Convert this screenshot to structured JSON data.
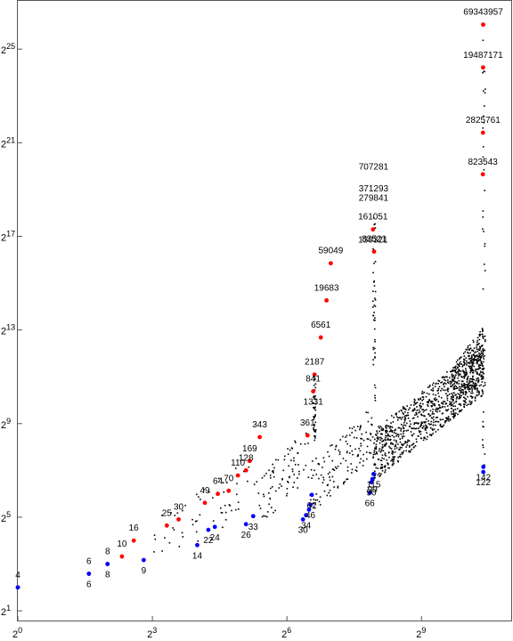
{
  "chart_data": {
    "type": "scatter",
    "title": "",
    "xlabel": "",
    "ylabel": "",
    "x_scale": "log2",
    "y_scale": "log2",
    "xlim": [
      1,
      2048
    ],
    "ylim": [
      1.5,
      140000000
    ],
    "x_ticks": [
      {
        "base": "2",
        "exp": "0",
        "value": 1
      },
      {
        "base": "2",
        "exp": "3",
        "value": 8
      },
      {
        "base": "2",
        "exp": "6",
        "value": 64
      },
      {
        "base": "2",
        "exp": "9",
        "value": 512
      }
    ],
    "y_ticks": [
      {
        "base": "2",
        "exp": "1",
        "value": 2
      },
      {
        "base": "2",
        "exp": "5",
        "value": 32
      },
      {
        "base": "2",
        "exp": "9",
        "value": 512
      },
      {
        "base": "2",
        "exp": "13",
        "value": 8192
      },
      {
        "base": "2",
        "exp": "17",
        "value": 131072
      },
      {
        "base": "2",
        "exp": "21",
        "value": 2097152
      },
      {
        "base": "2",
        "exp": "25",
        "value": 33554432
      }
    ],
    "colors": {
      "upper": "#ff0000",
      "lower": "#0000ff",
      "other": "#000000"
    },
    "series": [
      {
        "color": "upper",
        "points": [
          {
            "x": 1,
            "y": 4
          },
          {
            "x": 3,
            "y": 6
          },
          {
            "x": 4,
            "y": 8
          },
          {
            "x": 5,
            "y": 10
          },
          {
            "x": 6,
            "y": 16
          },
          {
            "x": 10,
            "y": 25
          },
          {
            "x": 12,
            "y": 30
          },
          {
            "x": 18,
            "y": 49
          },
          {
            "x": 22,
            "y": 64
          },
          {
            "x": 26,
            "y": 70
          },
          {
            "x": 30,
            "y": 110
          },
          {
            "x": 34,
            "y": 128
          },
          {
            "x": 36,
            "y": 169
          },
          {
            "x": 42,
            "y": 343
          },
          {
            "x": 88,
            "y": 361
          },
          {
            "x": 96,
            "y": 1331
          },
          {
            "x": 98,
            "y": 2187
          },
          {
            "x": 108,
            "y": 6561
          },
          {
            "x": 118,
            "y": 19683
          },
          {
            "x": 126,
            "y": 59049
          },
          {
            "x": 246,
            "y": 83521
          },
          {
            "x": 242,
            "y": 161051
          },
          {
            "x": 1322,
            "y": 823543
          },
          {
            "x": 1324,
            "y": 2825761
          },
          {
            "x": 1326,
            "y": 19487171
          },
          {
            "x": 1328,
            "y": 69343957
          }
        ]
      },
      {
        "color": "lower",
        "points": [
          {
            "x": 1,
            "y": 4
          },
          {
            "x": 3,
            "y": 6
          },
          {
            "x": 4,
            "y": 8
          },
          {
            "x": 7,
            "y": 9
          },
          {
            "x": 16,
            "y": 14
          },
          {
            "x": 19,
            "y": 22
          },
          {
            "x": 21,
            "y": 24
          },
          {
            "x": 34,
            "y": 26
          },
          {
            "x": 38,
            "y": 33
          },
          {
            "x": 82,
            "y": 30
          },
          {
            "x": 86,
            "y": 34
          },
          {
            "x": 90,
            "y": 40
          },
          {
            "x": 92,
            "y": 46
          },
          {
            "x": 94,
            "y": 62
          },
          {
            "x": 230,
            "y": 66
          },
          {
            "x": 236,
            "y": 90
          },
          {
            "x": 240,
            "y": 99
          },
          {
            "x": 244,
            "y": 115
          },
          {
            "x": 1330,
            "y": 122
          },
          {
            "x": 1332,
            "y": 142
          }
        ]
      }
    ],
    "labels": [
      {
        "text": "4",
        "x": 1,
        "y": 4,
        "pos": "above"
      },
      {
        "text": "6",
        "x": 3,
        "y": 6,
        "pos": "above"
      },
      {
        "text": "6",
        "x": 3,
        "y": 6,
        "pos": "below"
      },
      {
        "text": "8",
        "x": 4,
        "y": 8,
        "pos": "above"
      },
      {
        "text": "8",
        "x": 4,
        "y": 8,
        "pos": "below"
      },
      {
        "text": "10",
        "x": 5,
        "y": 10,
        "pos": "above"
      },
      {
        "text": "16",
        "x": 6,
        "y": 16,
        "pos": "above"
      },
      {
        "text": "9",
        "x": 7,
        "y": 9,
        "pos": "below"
      },
      {
        "text": "25",
        "x": 10,
        "y": 25,
        "pos": "above"
      },
      {
        "text": "30",
        "x": 12,
        "y": 30,
        "pos": "above"
      },
      {
        "text": "14",
        "x": 16,
        "y": 14,
        "pos": "below"
      },
      {
        "text": "49",
        "x": 18,
        "y": 49,
        "pos": "above"
      },
      {
        "text": "22",
        "x": 19,
        "y": 22,
        "pos": "below"
      },
      {
        "text": "24",
        "x": 21,
        "y": 24,
        "pos": "below"
      },
      {
        "text": "64",
        "x": 22,
        "y": 64,
        "pos": "above"
      },
      {
        "text": "70",
        "x": 26,
        "y": 70,
        "pos": "above"
      },
      {
        "text": "110",
        "x": 30,
        "y": 110,
        "pos": "above"
      },
      {
        "text": "128",
        "x": 34,
        "y": 128,
        "pos": "above"
      },
      {
        "text": "26",
        "x": 34,
        "y": 26,
        "pos": "below"
      },
      {
        "text": "169",
        "x": 36,
        "y": 169,
        "pos": "above"
      },
      {
        "text": "33",
        "x": 38,
        "y": 33,
        "pos": "below"
      },
      {
        "text": "343",
        "x": 42,
        "y": 343,
        "pos": "above"
      },
      {
        "text": "30",
        "x": 82,
        "y": 30,
        "pos": "below"
      },
      {
        "text": "34",
        "x": 86,
        "y": 34,
        "pos": "below"
      },
      {
        "text": "361",
        "x": 88,
        "y": 361,
        "pos": "above"
      },
      {
        "text": "46",
        "x": 92,
        "y": 46,
        "pos": "below"
      },
      {
        "text": "62",
        "x": 94,
        "y": 62,
        "pos": "below"
      },
      {
        "text": "1331",
        "x": 96,
        "y": 1331,
        "pos": "below"
      },
      {
        "text": "841",
        "x": 96,
        "y": 1331,
        "pos": "above"
      },
      {
        "text": "2187",
        "x": 98,
        "y": 2187,
        "pos": "above"
      },
      {
        "text": "6561",
        "x": 108,
        "y": 6561,
        "pos": "above"
      },
      {
        "text": "19683",
        "x": 118,
        "y": 19683,
        "pos": "above"
      },
      {
        "text": "59049",
        "x": 126,
        "y": 59049,
        "pos": "above"
      },
      {
        "text": "66",
        "x": 230,
        "y": 66,
        "pos": "below"
      },
      {
        "text": "90",
        "x": 236,
        "y": 90,
        "pos": "below"
      },
      {
        "text": "99",
        "x": 240,
        "y": 99,
        "pos": "below"
      },
      {
        "text": "115",
        "x": 244,
        "y": 115,
        "pos": "below"
      },
      {
        "text": "83521",
        "x": 246,
        "y": 83521,
        "pos": "above"
      },
      {
        "text": "161051",
        "x": 242,
        "y": 161051,
        "pos": "above"
      },
      {
        "text": "130321",
        "x": 242,
        "y": 161051,
        "pos": "below"
      },
      {
        "text": "279841",
        "x": 244,
        "y": 279841,
        "pos": "above"
      },
      {
        "text": "371293",
        "x": 244,
        "y": 371293,
        "pos": "above"
      },
      {
        "text": "707281",
        "x": 244,
        "y": 707281,
        "pos": "above"
      },
      {
        "text": "823543",
        "x": 1322,
        "y": 823543,
        "pos": "above"
      },
      {
        "text": "2825761",
        "x": 1324,
        "y": 2825761,
        "pos": "above"
      },
      {
        "text": "19487171",
        "x": 1326,
        "y": 19487171,
        "pos": "above"
      },
      {
        "text": "69343957",
        "x": 1328,
        "y": 69343957,
        "pos": "above"
      },
      {
        "text": "122",
        "x": 1330,
        "y": 122,
        "pos": "below"
      },
      {
        "text": "142",
        "x": 1332,
        "y": 142,
        "pos": "below"
      }
    ]
  }
}
